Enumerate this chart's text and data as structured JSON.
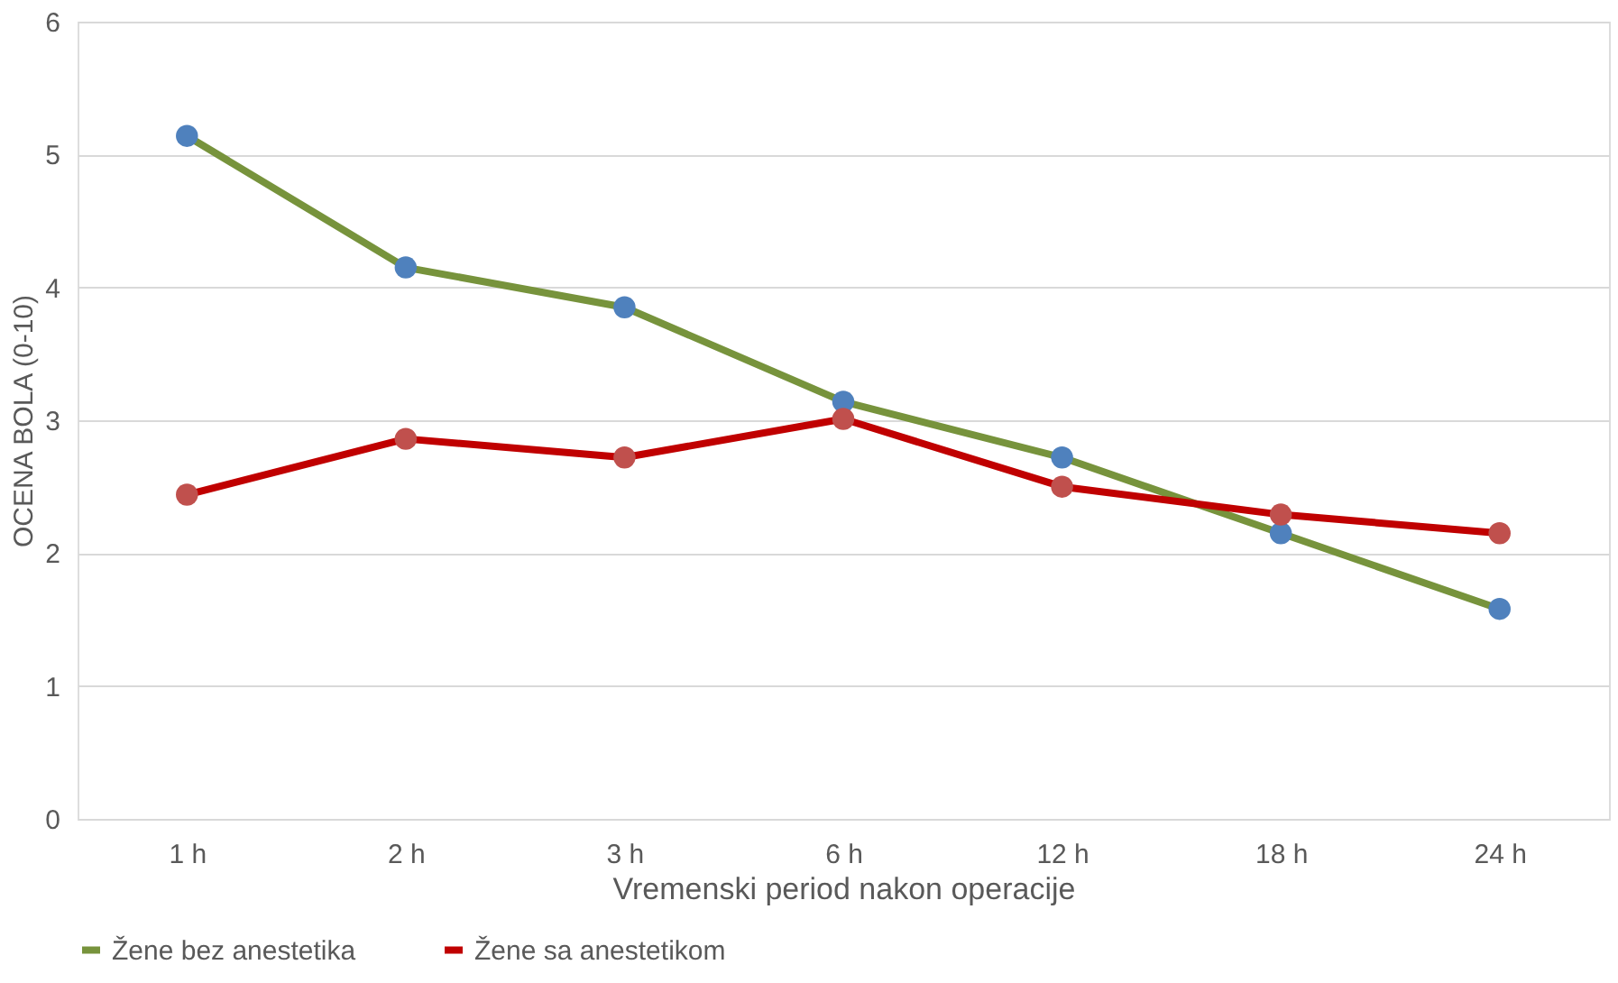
{
  "chart_data": {
    "type": "line",
    "xlabel": "Vremenski period nakon operacije",
    "ylabel": "OCENA BOLA (0-10)",
    "categories": [
      "1 h",
      "2 h",
      "3 h",
      "6 h",
      "12 h",
      "18 h",
      "24 h"
    ],
    "series": [
      {
        "name": "Žene bez anestetika",
        "color": "#77933c",
        "colors": [
          "#4f81bd",
          "#4f81bd",
          "#4f81bd",
          "#4f81bd",
          "#4f81bd",
          "#4f81bd",
          "#4f81bd"
        ],
        "values": [
          5.14,
          4.15,
          3.85,
          3.14,
          2.72,
          2.15,
          1.58
        ]
      },
      {
        "name": "Žene sa anestetikom",
        "color": "#c00000",
        "colors": [
          "#c0504d",
          "#c0504d",
          "#c0504d",
          "#c0504d",
          "#c0504d",
          "#c0504d",
          "#c0504d"
        ],
        "values": [
          2.44,
          2.86,
          2.72,
          3.01,
          2.5,
          2.29,
          2.15
        ]
      }
    ],
    "ylim": [
      0,
      6
    ],
    "yticks": [
      0,
      1,
      2,
      3,
      4,
      5,
      6
    ],
    "grid": "y",
    "legend": "bottom",
    "marker": "circle",
    "line_style": "solid"
  }
}
